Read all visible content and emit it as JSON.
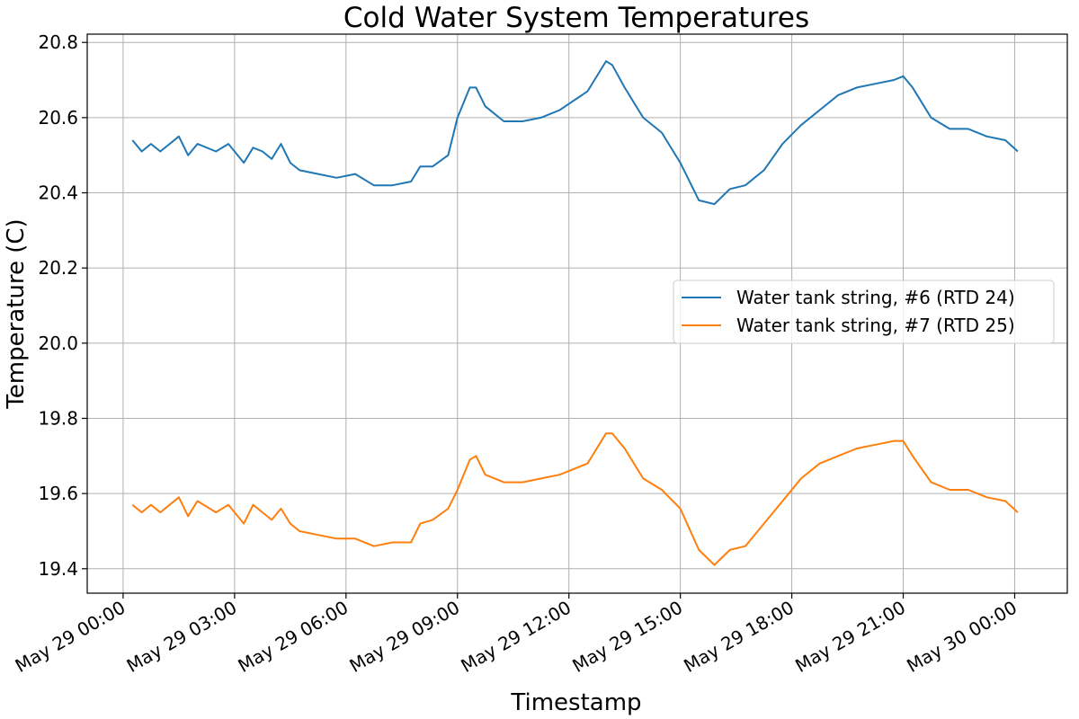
{
  "chart_data": {
    "type": "line",
    "title": "Cold Water System Temperatures",
    "xlabel": "Timestamp",
    "ylabel": "Temperature (C)",
    "x_ticks": [
      "May 29 00:00",
      "May 29 03:00",
      "May 29 06:00",
      "May 29 09:00",
      "May 29 12:00",
      "May 29 15:00",
      "May 29 18:00",
      "May 29 21:00",
      "May 30 00:00"
    ],
    "x_range": [
      "May 28 23:02",
      "May 30 01:25"
    ],
    "y_ticks": [
      "19.4",
      "19.6",
      "19.8",
      "20.0",
      "20.2",
      "20.4",
      "20.6",
      "20.8"
    ],
    "ylim": [
      19.335,
      20.822
    ],
    "grid": true,
    "legend_position": "center-right",
    "x": [
      "May 29 00:15",
      "May 29 00:30",
      "May 29 00:45",
      "May 29 01:00",
      "May 29 01:30",
      "May 29 01:45",
      "May 29 02:00",
      "May 29 02:30",
      "May 29 02:50",
      "May 29 03:15",
      "May 29 03:30",
      "May 29 03:45",
      "May 29 04:00",
      "May 29 04:15",
      "May 29 04:30",
      "May 29 04:45",
      "May 29 05:15",
      "May 29 05:45",
      "May 29 06:15",
      "May 29 06:45",
      "May 29 07:15",
      "May 29 07:45",
      "May 29 08:00",
      "May 29 08:20",
      "May 29 08:45",
      "May 29 09:00",
      "May 29 09:20",
      "May 29 09:30",
      "May 29 09:45",
      "May 29 10:15",
      "May 29 10:45",
      "May 29 11:15",
      "May 29 11:45",
      "May 29 12:30",
      "May 29 13:00",
      "May 29 13:10",
      "May 29 13:30",
      "May 29 14:00",
      "May 29 14:30",
      "May 29 15:00",
      "May 29 15:30",
      "May 29 15:55",
      "May 29 16:20",
      "May 29 16:45",
      "May 29 17:15",
      "May 29 17:45",
      "May 29 18:15",
      "May 29 18:45",
      "May 29 19:15",
      "May 29 19:45",
      "May 29 20:15",
      "May 29 20:45",
      "May 29 21:00",
      "May 29 21:15",
      "May 29 21:45",
      "May 29 22:15",
      "May 29 22:45",
      "May 29 23:15",
      "May 29 23:45",
      "May 30 00:05"
    ],
    "series": [
      {
        "name": "Water tank string, #6 (RTD 24)",
        "color": "#1f77b4",
        "values": [
          20.54,
          20.51,
          20.53,
          20.51,
          20.55,
          20.5,
          20.53,
          20.51,
          20.53,
          20.48,
          20.52,
          20.51,
          20.49,
          20.53,
          20.48,
          20.46,
          20.45,
          20.44,
          20.45,
          20.42,
          20.42,
          20.43,
          20.47,
          20.47,
          20.5,
          20.6,
          20.68,
          20.68,
          20.63,
          20.59,
          20.59,
          20.6,
          20.62,
          20.67,
          20.75,
          20.74,
          20.68,
          20.6,
          20.56,
          20.48,
          20.38,
          20.37,
          20.41,
          20.42,
          20.46,
          20.53,
          20.58,
          20.62,
          20.66,
          20.68,
          20.69,
          20.7,
          20.71,
          20.68,
          20.6,
          20.57,
          20.57,
          20.55,
          20.54,
          20.51
        ]
      },
      {
        "name": "Water tank string, #7 (RTD 25)",
        "color": "#ff7f0e",
        "values": [
          19.57,
          19.55,
          19.57,
          19.55,
          19.59,
          19.54,
          19.58,
          19.55,
          19.57,
          19.52,
          19.57,
          19.55,
          19.53,
          19.56,
          19.52,
          19.5,
          19.49,
          19.48,
          19.48,
          19.46,
          19.47,
          19.47,
          19.52,
          19.53,
          19.56,
          19.61,
          19.69,
          19.7,
          19.65,
          19.63,
          19.63,
          19.64,
          19.65,
          19.68,
          19.76,
          19.76,
          19.72,
          19.64,
          19.61,
          19.56,
          19.45,
          19.41,
          19.45,
          19.46,
          19.52,
          19.58,
          19.64,
          19.68,
          19.7,
          19.72,
          19.73,
          19.74,
          19.74,
          19.7,
          19.63,
          19.61,
          19.61,
          19.59,
          19.58,
          19.55
        ]
      }
    ]
  }
}
